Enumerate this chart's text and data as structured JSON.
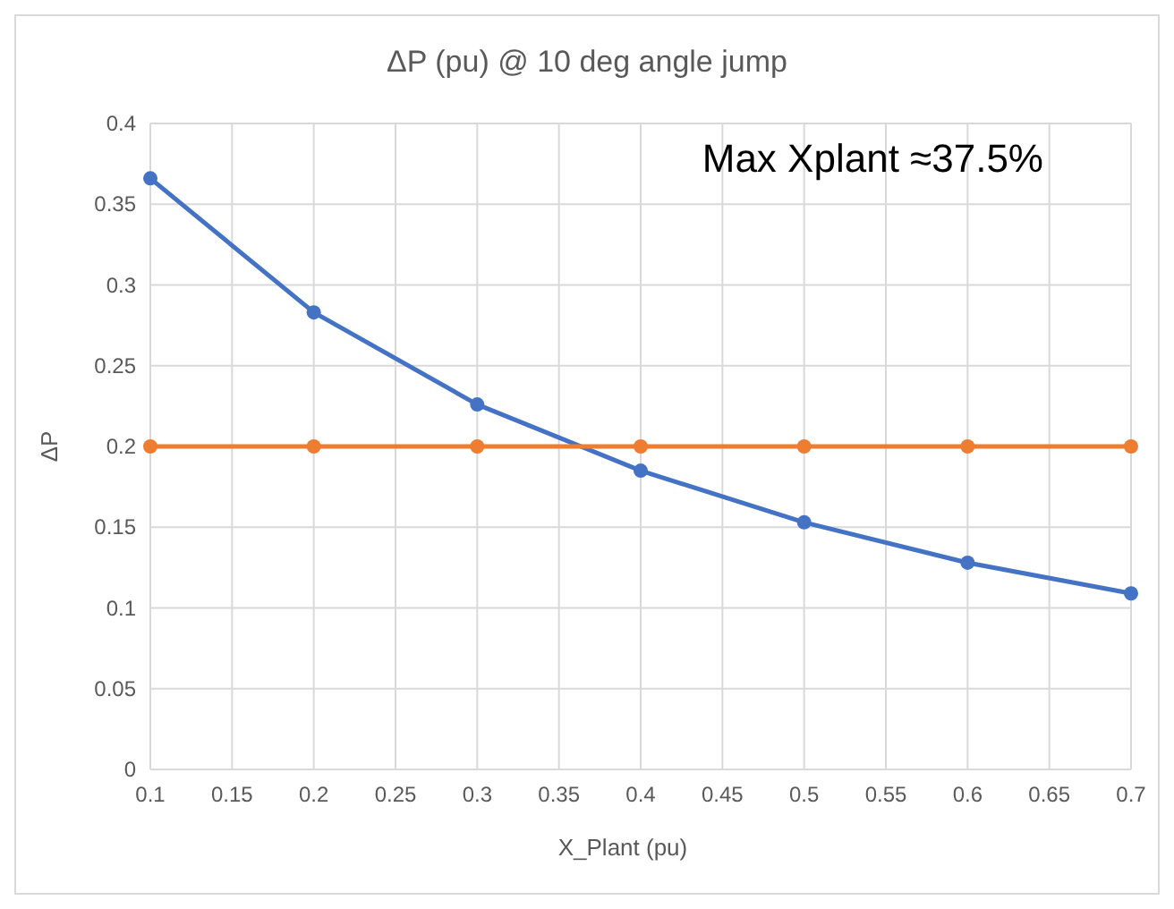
{
  "chart_data": {
    "type": "line",
    "title": "ΔP (pu) @ 10 deg angle jump",
    "xlabel": "X_Plant (pu)",
    "ylabel": "ΔP",
    "x": [
      0.1,
      0.2,
      0.3,
      0.4,
      0.5,
      0.6,
      0.7
    ],
    "series": [
      {
        "color": "#4472c4",
        "values": [
          0.366,
          0.283,
          0.226,
          0.185,
          0.153,
          0.128,
          0.109
        ]
      },
      {
        "color": "#ed7d31",
        "values": [
          0.2,
          0.2,
          0.2,
          0.2,
          0.2,
          0.2,
          0.2
        ]
      }
    ],
    "xlim": [
      0.1,
      0.7
    ],
    "xticks": [
      0.1,
      0.15,
      0.2,
      0.25,
      0.3,
      0.35,
      0.4,
      0.45,
      0.5,
      0.55,
      0.6,
      0.65,
      0.7
    ],
    "ylim": [
      0,
      0.4
    ],
    "yticks": [
      0,
      0.05,
      0.1,
      0.15,
      0.2,
      0.25,
      0.3,
      0.35,
      0.4
    ],
    "grid": true,
    "marker": "circle",
    "line_style": "solid",
    "annotations": [
      "Max Xplant ≈37.5%"
    ]
  }
}
